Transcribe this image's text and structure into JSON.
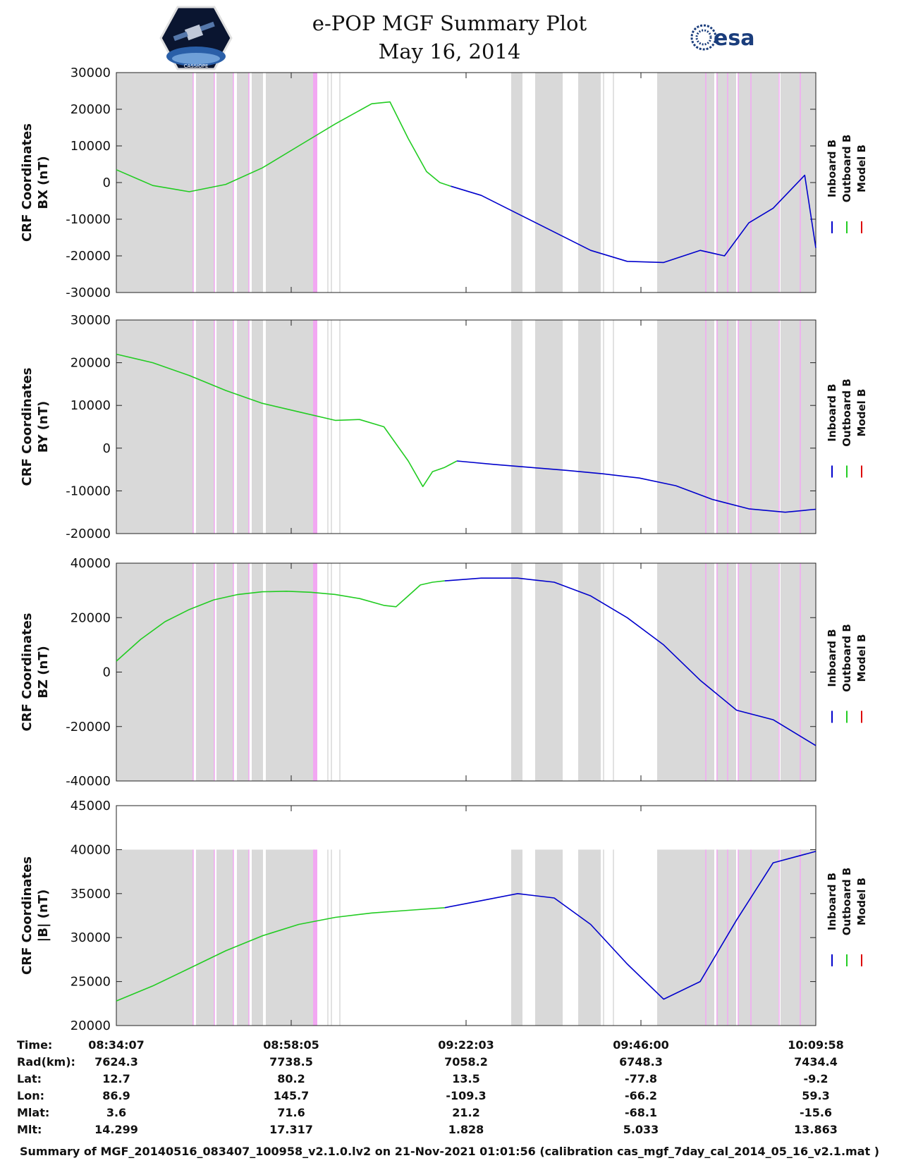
{
  "header": {
    "title": "e-POP MGF Summary Plot",
    "date": "May 16, 2014",
    "right_logo_text": "esa",
    "left_logo_text": "CASSIOPE"
  },
  "colors": {
    "inboard": "#0000cc",
    "outboard": "#22cc22",
    "model": "#dd0000",
    "shade": "#d9d9d9",
    "magenta": "#f2a8f2"
  },
  "legend": [
    "Inboard B",
    "Outboard B",
    "Model B"
  ],
  "chart_data": [
    {
      "type": "line",
      "panel": "BX",
      "ylabel_line1": "CRF Coordinates",
      "ylabel_line2": "BX (nT)",
      "ylim": [
        -30000,
        30000
      ],
      "yticks": [
        "30000",
        "20000",
        "10000",
        "0",
        "-10000",
        "-20000",
        "-30000"
      ],
      "xlim_seconds": [
        0,
        5751
      ],
      "shaded_top": 30000,
      "series": [
        {
          "name": "Outboard B",
          "x": [
            0,
            300,
            600,
            900,
            1200,
            1500,
            1800,
            2100,
            2250,
            2400,
            2550,
            2660,
            2750
          ],
          "y": [
            3500,
            -800,
            -2500,
            -500,
            4000,
            10000,
            16000,
            21500,
            22000,
            12000,
            3000,
            0,
            -1000
          ]
        },
        {
          "name": "Inboard B",
          "x": [
            2750,
            3000,
            3300,
            3600,
            3900,
            4200,
            4500,
            4800,
            5000,
            5200,
            5400,
            5660,
            5751
          ],
          "y": [
            -1000,
            -3500,
            -8500,
            -13500,
            -18500,
            -21500,
            -21800,
            -18500,
            -20000,
            -11000,
            -7000,
            2000,
            -17800
          ]
        }
      ]
    },
    {
      "type": "line",
      "panel": "BY",
      "ylabel_line1": "CRF Coordinates",
      "ylabel_line2": "BY (nT)",
      "ylim": [
        -20000,
        30000
      ],
      "yticks": [
        "30000",
        "20000",
        "10000",
        "0",
        "-10000",
        "-20000"
      ],
      "xlim_seconds": [
        0,
        5751
      ],
      "shaded_top": 30000,
      "series": [
        {
          "name": "Outboard B",
          "x": [
            0,
            300,
            600,
            900,
            1200,
            1500,
            1800,
            2000,
            2200,
            2400,
            2520,
            2600,
            2700,
            2800
          ],
          "y": [
            22000,
            20000,
            17000,
            13500,
            10500,
            8500,
            6500,
            6700,
            5000,
            -3000,
            -9000,
            -5500,
            -4500,
            -3000
          ]
        },
        {
          "name": "Inboard B",
          "x": [
            2800,
            3100,
            3400,
            3700,
            4000,
            4300,
            4600,
            4900,
            5200,
            5500,
            5751
          ],
          "y": [
            -3000,
            -3800,
            -4500,
            -5200,
            -6000,
            -7000,
            -8800,
            -12000,
            -14200,
            -15000,
            -14300
          ]
        }
      ]
    },
    {
      "type": "line",
      "panel": "BZ",
      "ylabel_line1": "CRF Coordinates",
      "ylabel_line2": "BZ (nT)",
      "ylim": [
        -40000,
        40000
      ],
      "yticks": [
        "40000",
        "20000",
        "0",
        "-20000",
        "-40000"
      ],
      "xlim_seconds": [
        0,
        5751
      ],
      "shaded_top": 40000,
      "series": [
        {
          "name": "Outboard B",
          "x": [
            0,
            200,
            400,
            600,
            800,
            1000,
            1200,
            1400,
            1600,
            1800,
            2000,
            2200,
            2300,
            2400,
            2500,
            2600,
            2700
          ],
          "y": [
            4000,
            12000,
            18500,
            23000,
            26500,
            28500,
            29500,
            29700,
            29300,
            28500,
            27000,
            24500,
            24000,
            28000,
            32000,
            33000,
            33500
          ]
        },
        {
          "name": "Inboard B",
          "x": [
            2700,
            3000,
            3300,
            3600,
            3900,
            4200,
            4500,
            4800,
            5100,
            5400,
            5751
          ],
          "y": [
            33500,
            34500,
            34500,
            33000,
            28000,
            20000,
            10000,
            -3000,
            -14000,
            -17500,
            -27000
          ]
        }
      ]
    },
    {
      "type": "line",
      "panel": "|B|",
      "ylabel_line1": "CRF Coordinates",
      "ylabel_line2": "|B| (nT)",
      "ylim": [
        20000,
        45000
      ],
      "yticks": [
        "45000",
        "40000",
        "35000",
        "30000",
        "25000",
        "20000"
      ],
      "xlim_seconds": [
        0,
        5751
      ],
      "shaded_top": 40000,
      "series": [
        {
          "name": "Outboard B",
          "x": [
            0,
            300,
            600,
            900,
            1200,
            1500,
            1800,
            2100,
            2400,
            2700
          ],
          "y": [
            22800,
            24500,
            26500,
            28500,
            30200,
            31500,
            32300,
            32800,
            33100,
            33400
          ]
        },
        {
          "name": "Inboard B",
          "x": [
            2700,
            3000,
            3300,
            3600,
            3900,
            4200,
            4500,
            4800,
            5100,
            5400,
            5751
          ],
          "y": [
            33400,
            34200,
            35000,
            34500,
            31500,
            27000,
            23000,
            25000,
            32000,
            38500,
            39800
          ]
        }
      ]
    }
  ],
  "ephemeris": {
    "row_labels": [
      "Time:",
      "Rad(km):",
      "Lat:",
      "Lon:",
      "Mlat:",
      "Mlt:"
    ],
    "columns": [
      [
        "08:34:07",
        "7624.3",
        "12.7",
        "86.9",
        "3.6",
        "14.299"
      ],
      [
        "08:58:05",
        "7738.5",
        "80.2",
        "145.7",
        "71.6",
        "17.317"
      ],
      [
        "09:22:03",
        "7058.2",
        "13.5",
        "-109.3",
        "21.2",
        "1.828"
      ],
      [
        "09:46:00",
        "6748.3",
        "-77.8",
        "-66.2",
        "-68.1",
        "5.033"
      ],
      [
        "10:09:58",
        "7434.4",
        "-9.2",
        "59.3",
        "-15.6",
        "13.863"
      ]
    ]
  },
  "footer": "Summary of MGF_20140516_083407_100958_v2.1.0.lv2 on 21-Nov-2021 01:01:56 (calibration cas_mgf_7day_cal_2014_05_16_v2.1.mat )"
}
